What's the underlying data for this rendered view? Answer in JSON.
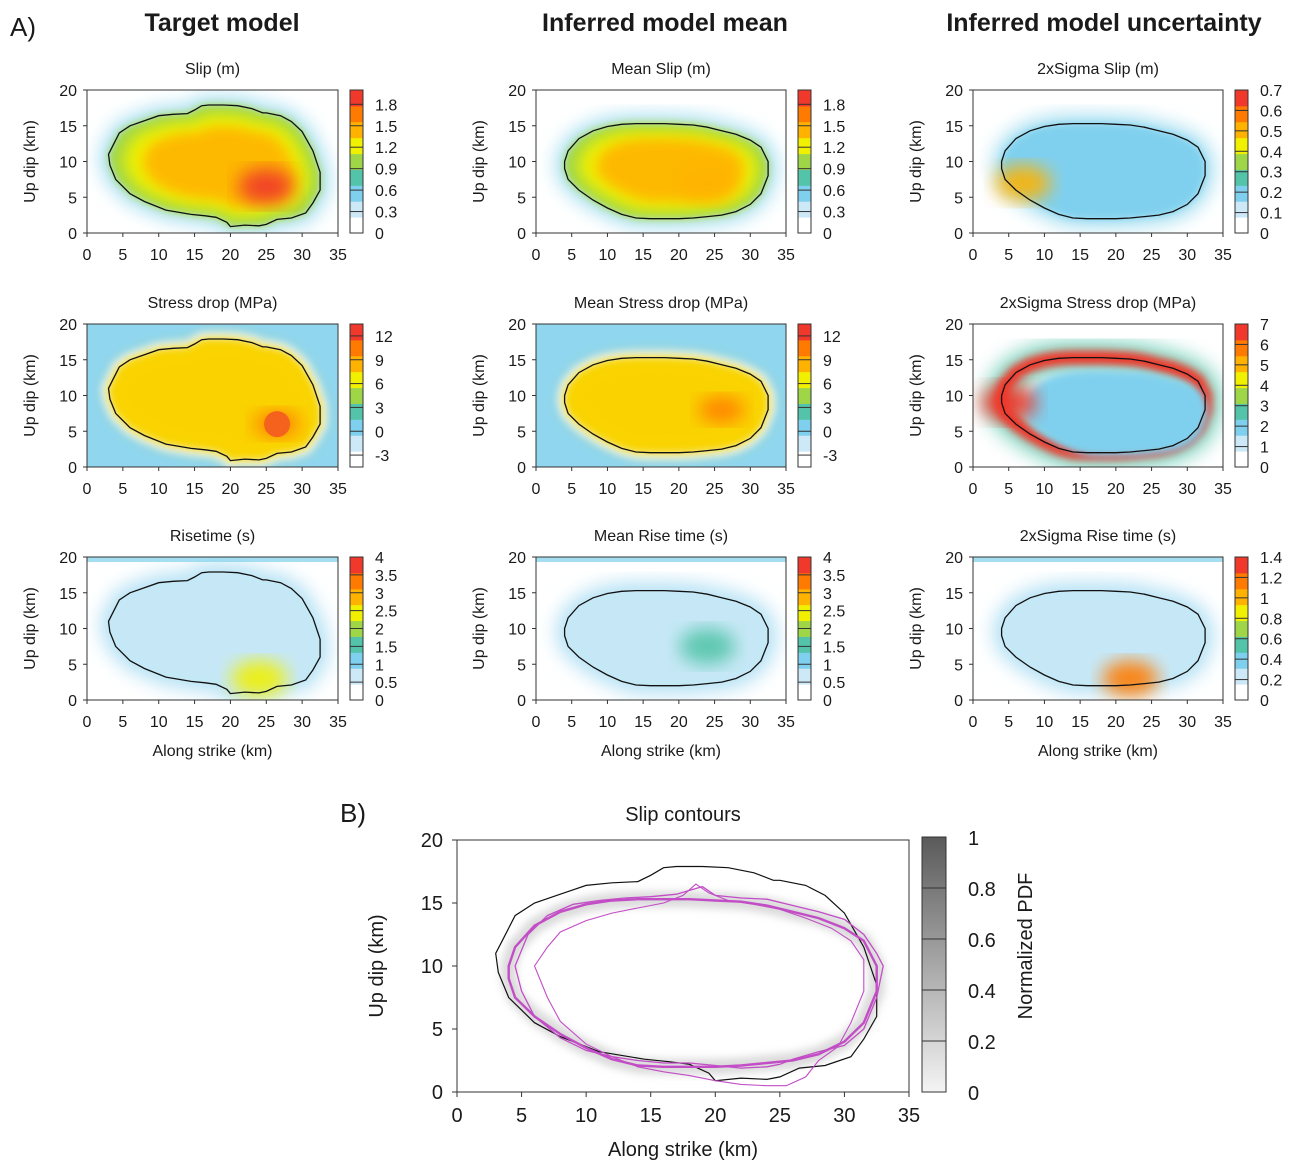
{
  "figure": {
    "label_a": "A)",
    "label_b": "B)",
    "column_headings": [
      "Target model",
      "Inferred model mean",
      "Inferred model uncertainty"
    ]
  },
  "chart_data": [
    {
      "type": "heatmap",
      "title": "Slip (m)",
      "ylabel": "Up dip (km)",
      "xlabel": "",
      "xlim": [
        0,
        35
      ],
      "ylim": [
        0,
        20
      ],
      "x_ticks": [
        "0",
        "5",
        "10",
        "15",
        "20",
        "25",
        "30",
        "35"
      ],
      "y_ticks": [
        "0",
        "5",
        "10",
        "15",
        "20"
      ],
      "colorbar_ticks": [
        "0",
        "0.3",
        "0.6",
        "0.9",
        "1.2",
        "1.5",
        "1.8"
      ],
      "colorbar_range": [
        0,
        2.0
      ],
      "peak": {
        "x": 25,
        "y": 6.5,
        "value": 1.9
      },
      "features": []
    },
    {
      "type": "heatmap",
      "title": "Mean Slip (m)",
      "ylabel": "Up dip (km)",
      "xlabel": "",
      "xlim": [
        0,
        35
      ],
      "ylim": [
        0,
        20
      ],
      "x_ticks": [
        "0",
        "5",
        "10",
        "15",
        "20",
        "25",
        "30",
        "35"
      ],
      "y_ticks": [
        "0",
        "5",
        "10",
        "15",
        "20"
      ],
      "colorbar_ticks": [
        "0",
        "0.3",
        "0.6",
        "0.9",
        "1.2",
        "1.5",
        "1.8"
      ],
      "colorbar_range": [
        0,
        2.0
      ],
      "peak": {
        "x": 24,
        "y": 7,
        "value": 1.6
      },
      "features": []
    },
    {
      "type": "heatmap",
      "title": "2xSigma Slip (m)",
      "ylabel": "Up dip (km)",
      "xlabel": "",
      "xlim": [
        0,
        35
      ],
      "ylim": [
        0,
        20
      ],
      "x_ticks": [
        "0",
        "5",
        "10",
        "15",
        "20",
        "25",
        "30",
        "35"
      ],
      "y_ticks": [
        "0",
        "5",
        "10",
        "15",
        "20"
      ],
      "colorbar_ticks": [
        "0",
        "0.1",
        "0.2",
        "0.3",
        "0.4",
        "0.5",
        "0.6",
        "0.7"
      ],
      "colorbar_range": [
        0,
        0.7
      ],
      "peak": {
        "x": 7,
        "y": 7,
        "value": 0.55
      },
      "features": []
    },
    {
      "type": "heatmap",
      "title": "Stress drop (MPa)",
      "ylabel": "Up dip (km)",
      "xlabel": "",
      "xlim": [
        0,
        35
      ],
      "ylim": [
        0,
        20
      ],
      "x_ticks": [
        "0",
        "5",
        "10",
        "15",
        "20",
        "25",
        "30",
        "35"
      ],
      "y_ticks": [
        "0",
        "5",
        "10",
        "15",
        "20"
      ],
      "colorbar_ticks": [
        "-3",
        "0",
        "3",
        "6",
        "9",
        "12"
      ],
      "colorbar_range": [
        -4.5,
        13.5
      ],
      "peak": {
        "x": 26.5,
        "y": 6,
        "value": 12
      },
      "features": [
        "asperity"
      ]
    },
    {
      "type": "heatmap",
      "title": "Mean Stress drop (MPa)",
      "ylabel": "Up dip (km)",
      "xlabel": "",
      "xlim": [
        0,
        35
      ],
      "ylim": [
        0,
        20
      ],
      "x_ticks": [
        "0",
        "5",
        "10",
        "15",
        "20",
        "25",
        "30",
        "35"
      ],
      "y_ticks": [
        "0",
        "5",
        "10",
        "15",
        "20"
      ],
      "colorbar_ticks": [
        "-3",
        "0",
        "3",
        "6",
        "9",
        "12"
      ],
      "colorbar_range": [
        -4.5,
        13.5
      ],
      "peak": {
        "x": 26,
        "y": 8,
        "value": 11
      },
      "features": []
    },
    {
      "type": "heatmap",
      "title": "2xSigma Stress drop (MPa)",
      "ylabel": "Up dip (km)",
      "xlabel": "",
      "xlim": [
        0,
        35
      ],
      "ylim": [
        0,
        20
      ],
      "x_ticks": [
        "0",
        "5",
        "10",
        "15",
        "20",
        "25",
        "30",
        "35"
      ],
      "y_ticks": [
        "0",
        "5",
        "10",
        "15",
        "20"
      ],
      "colorbar_ticks": [
        "0",
        "1",
        "2",
        "3",
        "4",
        "5",
        "6",
        "7"
      ],
      "colorbar_range": [
        0,
        7
      ],
      "peak": {
        "x": 5,
        "y": 9,
        "value": 7
      },
      "features": [
        "ring"
      ]
    },
    {
      "type": "heatmap",
      "title": "Risetime (s)",
      "ylabel": "Up dip (km)",
      "xlabel": "Along strike (km)",
      "xlim": [
        0,
        35
      ],
      "ylim": [
        0,
        20
      ],
      "x_ticks": [
        "0",
        "5",
        "10",
        "15",
        "20",
        "25",
        "30",
        "35"
      ],
      "y_ticks": [
        "0",
        "5",
        "10",
        "15",
        "20"
      ],
      "colorbar_ticks": [
        "0",
        "0.5",
        "1",
        "1.5",
        "2",
        "2.5",
        "3",
        "3.5",
        "4"
      ],
      "colorbar_range": [
        0,
        4
      ],
      "peak": {
        "x": 24,
        "y": 3,
        "value": 2.5
      },
      "features": [
        "topband"
      ]
    },
    {
      "type": "heatmap",
      "title": "Mean Rise time (s)",
      "ylabel": "Up dip (km)",
      "xlabel": "Along strike (km)",
      "xlim": [
        0,
        35
      ],
      "ylim": [
        0,
        20
      ],
      "x_ticks": [
        "0",
        "5",
        "10",
        "15",
        "20",
        "25",
        "30",
        "35"
      ],
      "y_ticks": [
        "0",
        "5",
        "10",
        "15",
        "20"
      ],
      "colorbar_ticks": [
        "0",
        "0.5",
        "1",
        "1.5",
        "2",
        "2.5",
        "3",
        "3.5",
        "4"
      ],
      "colorbar_range": [
        0,
        4
      ],
      "peak": {
        "x": 24,
        "y": 7.5,
        "value": 1.6
      },
      "features": [
        "topband"
      ]
    },
    {
      "type": "heatmap",
      "title": "2xSigma Rise time (s)",
      "ylabel": "Up dip (km)",
      "xlabel": "Along strike (km)",
      "xlim": [
        0,
        35
      ],
      "ylim": [
        0,
        20
      ],
      "x_ticks": [
        "0",
        "5",
        "10",
        "15",
        "20",
        "25",
        "30",
        "35"
      ],
      "y_ticks": [
        "0",
        "5",
        "10",
        "15",
        "20"
      ],
      "colorbar_ticks": [
        "0",
        "0.2",
        "0.4",
        "0.6",
        "0.8",
        "1",
        "1.2",
        "1.4"
      ],
      "colorbar_range": [
        0,
        1.4
      ],
      "peak": {
        "x": 22,
        "y": 3,
        "value": 1.2
      },
      "features": [
        "topband"
      ]
    },
    {
      "type": "line",
      "title": "Slip contours",
      "xlabel": "Along strike (km)",
      "ylabel": "Up dip (km)",
      "xlim": [
        0,
        35
      ],
      "ylim": [
        0,
        20
      ],
      "x_ticks": [
        "0",
        "5",
        "10",
        "15",
        "20",
        "25",
        "30",
        "35"
      ],
      "y_ticks": [
        "0",
        "5",
        "10",
        "15",
        "20"
      ],
      "colorbar_label": "Normalized PDF",
      "colorbar_ticks": [
        "0",
        "0.2",
        "0.4",
        "0.6",
        "0.8",
        "1"
      ],
      "colorbar_range": [
        0,
        1
      ],
      "series": [
        {
          "x": [
            3.5,
            4.5,
            6,
            8,
            10,
            12,
            14,
            15,
            16,
            17,
            17.5,
            19,
            21,
            23,
            24.5,
            25,
            27,
            28.5,
            30,
            31.5,
            32.5,
            32.5,
            31.5,
            30.5,
            28.5,
            26.5,
            25,
            24,
            22,
            20,
            19.5,
            18,
            16.5,
            14.5,
            11,
            8,
            6,
            4,
            3.2,
            3
          ],
          "y": [
            12,
            14,
            15,
            15.7,
            16.4,
            16.6,
            16.7,
            17.2,
            17.8,
            17.9,
            17.9,
            17.9,
            17.8,
            17.4,
            16.8,
            16.8,
            16.4,
            15.6,
            14.2,
            11.5,
            8.5,
            6,
            4.2,
            2.8,
            2.1,
            1.9,
            1.2,
            1,
            1.1,
            0.9,
            1.5,
            2.2,
            2.4,
            2.6,
            3.2,
            4.4,
            5.5,
            7.5,
            9.5,
            11
          ]
        },
        {
          "x": [
            4,
            4.5,
            6,
            8,
            10,
            12,
            14,
            16,
            18,
            20,
            22,
            24,
            26,
            28,
            30,
            31.5,
            32.5,
            32.5,
            31.5,
            30,
            28,
            26,
            24,
            22,
            20,
            18,
            16,
            14,
            12,
            10,
            8,
            6,
            4.5,
            4
          ],
          "y": [
            10,
            11.5,
            13.2,
            14.3,
            14.9,
            15.2,
            15.3,
            15.3,
            15.3,
            15.2,
            15.1,
            14.8,
            14.3,
            13.8,
            13,
            12,
            10,
            8,
            5.5,
            4,
            3,
            2.5,
            2.3,
            2.1,
            2,
            2,
            2,
            2.1,
            2.6,
            3.5,
            4.6,
            6,
            7.5,
            9
          ]
        },
        {
          "x": [
            4.5,
            5.5,
            7,
            9,
            11,
            13,
            15,
            17,
            18,
            19,
            20,
            22,
            24,
            26,
            28,
            30,
            31.5,
            32.5,
            33,
            32.5,
            31.5,
            30,
            28,
            26,
            25,
            24,
            22,
            20,
            18,
            16,
            14,
            12,
            10,
            8,
            6,
            5
          ],
          "y": [
            10,
            12.5,
            14,
            14.9,
            15.2,
            15.4,
            15.5,
            15.7,
            16,
            16.3,
            15.6,
            15.4,
            15.3,
            14.8,
            14.3,
            13.7,
            12.5,
            11,
            10,
            7.5,
            5,
            3.7,
            3.2,
            2.6,
            2.2,
            2,
            1.9,
            2.1,
            2.3,
            2.3,
            2.5,
            2.8,
            3.3,
            4.3,
            6,
            8
          ]
        },
        {
          "x": [
            6,
            7,
            8,
            10,
            12,
            14,
            16,
            17.5,
            18.5,
            19.5,
            21,
            23,
            25,
            27,
            29,
            30.5,
            31.5,
            31.5,
            30.5,
            29.5,
            28,
            27,
            25.5,
            24,
            22,
            20,
            18,
            16,
            14,
            12,
            10,
            8,
            7
          ],
          "y": [
            10,
            11.5,
            12.7,
            13.6,
            14.2,
            14.6,
            15,
            15.6,
            16.5,
            15.8,
            15.2,
            14.9,
            14.5,
            13.8,
            13,
            12,
            10.5,
            8,
            5.5,
            3.6,
            2.5,
            1.2,
            0.5,
            0.5,
            0.6,
            0.9,
            1.3,
            1.6,
            2,
            2.8,
            3.8,
            5.6,
            7.5
          ]
        }
      ]
    }
  ],
  "contour_outer": {
    "x": [
      3.5,
      4.5,
      6,
      8,
      10,
      12,
      14,
      15,
      16,
      17,
      17.5,
      19,
      21,
      23,
      24.5,
      25,
      27,
      28.5,
      30,
      31.5,
      32.5,
      32.5,
      31.5,
      30.5,
      28.5,
      26.5,
      25,
      24,
      22,
      20,
      19.5,
      18,
      16.5,
      14.5,
      11,
      8,
      6,
      4,
      3.2,
      3
    ],
    "y": [
      12,
      14,
      15,
      15.7,
      16.4,
      16.6,
      16.7,
      17.2,
      17.8,
      17.9,
      17.9,
      17.9,
      17.8,
      17.4,
      16.8,
      16.8,
      16.4,
      15.6,
      14.2,
      11.5,
      8.5,
      6,
      4.2,
      2.8,
      2.1,
      1.9,
      1.2,
      1,
      1.1,
      0.9,
      1.5,
      2.2,
      2.4,
      2.6,
      3.2,
      4.4,
      5.5,
      7.5,
      9.5,
      11
    ]
  },
  "contour_inner": {
    "x": [
      4,
      4.5,
      6,
      8,
      10,
      12,
      14,
      16,
      18,
      20,
      22,
      24,
      26,
      28,
      30,
      31.5,
      32.5,
      32.5,
      31.5,
      30,
      28,
      26,
      24,
      22,
      20,
      18,
      16,
      14,
      12,
      10,
      8,
      6,
      4.5,
      4
    ],
    "y": [
      10,
      11.5,
      13.2,
      14.3,
      14.9,
      15.2,
      15.3,
      15.3,
      15.3,
      15.2,
      15.1,
      14.8,
      14.3,
      13.8,
      13,
      12,
      10,
      8,
      5.5,
      4,
      3,
      2.5,
      2.3,
      2.1,
      2,
      2,
      2,
      2.1,
      2.6,
      3.5,
      4.6,
      6,
      7.5,
      9
    ]
  },
  "colors": {
    "rainbow": [
      "#ffffff",
      "#cde8f6",
      "#7fd0ee",
      "#53c4a9",
      "#9fd648",
      "#f0f000",
      "#ffb300",
      "#ff7a00",
      "#f0392b"
    ],
    "magenta": "#c24dc6",
    "gray_scale": [
      "#f4f4f4",
      "#5a5a5a"
    ]
  }
}
